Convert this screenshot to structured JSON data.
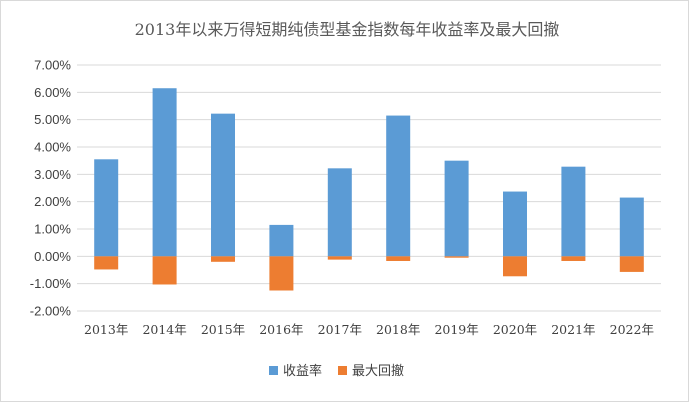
{
  "chart_data": {
    "type": "bar",
    "title": "2013年以来万得短期纯债型基金指数每年收益率及最大回撤",
    "categories": [
      "2013年",
      "2014年",
      "2015年",
      "2016年",
      "2017年",
      "2018年",
      "2019年",
      "2020年",
      "2021年",
      "2022年"
    ],
    "series": [
      {
        "name": "收益率",
        "color": "#5b9bd5",
        "values": [
          3.55,
          6.15,
          5.22,
          1.15,
          3.22,
          5.15,
          3.5,
          2.37,
          3.28,
          2.15
        ]
      },
      {
        "name": "最大回撤",
        "color": "#ed7d31",
        "values": [
          -0.48,
          -1.03,
          -0.2,
          -1.25,
          -0.12,
          -0.17,
          -0.05,
          -0.73,
          -0.17,
          -0.57
        ]
      }
    ],
    "ylim": [
      -2,
      7
    ],
    "yticks": [
      "7.00%",
      "6.00%",
      "5.00%",
      "4.00%",
      "3.00%",
      "2.00%",
      "1.00%",
      "0.00%",
      "-1.00%",
      "-2.00%"
    ],
    "grid": true,
    "legend_position": "bottom"
  }
}
